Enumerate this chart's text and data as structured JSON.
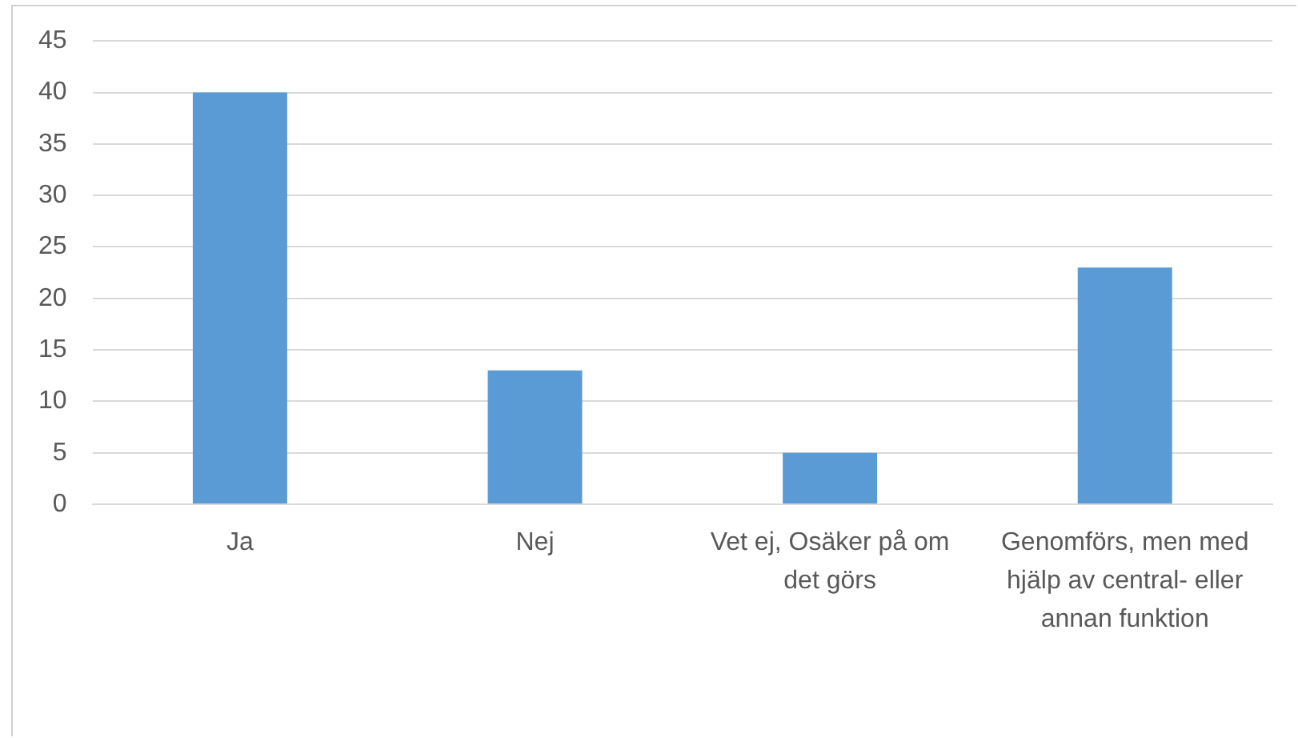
{
  "chart_data": {
    "type": "bar",
    "categories": [
      "Ja",
      "Nej",
      "Vet ej, Osäker på om det görs",
      "Genomförs, men med hjälp av central- eller annan funktion"
    ],
    "values": [
      40,
      13,
      5,
      23
    ],
    "color": "#5b9bd5",
    "ylim": [
      0,
      45
    ],
    "yticks": [
      0,
      5,
      10,
      15,
      20,
      25,
      30,
      35,
      40,
      45
    ],
    "grid": "y"
  }
}
